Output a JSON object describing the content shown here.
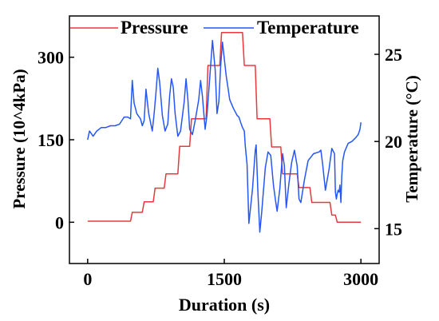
{
  "chart_data": {
    "type": "line",
    "xlabel": "Duration (s)",
    "ylabel_left": "Pressure (10^4kPa)",
    "ylabel_right": "Temperature (°C)",
    "xlim": [
      -200,
      3200
    ],
    "ylim_left": [
      -75,
      375
    ],
    "ylim_right": [
      13,
      27.2
    ],
    "x_ticks": [
      0,
      1500,
      3000
    ],
    "x_tick_labels": [
      "0",
      "1500",
      "3000"
    ],
    "y_left_ticks": [
      0,
      150,
      300
    ],
    "y_left_tick_labels": [
      "0",
      "150",
      "300"
    ],
    "y_right_ticks": [
      15,
      20,
      25
    ],
    "y_right_tick_labels": [
      "15",
      "20",
      "25"
    ],
    "grid": false,
    "legend_position": "top",
    "series": [
      {
        "name": "Pressure",
        "axis": "left",
        "color": "#e8383d",
        "x": [
          0,
          470,
          490,
          600,
          620,
          720,
          740,
          840,
          860,
          990,
          1010,
          1120,
          1140,
          1300,
          1320,
          1450,
          1470,
          1700,
          1720,
          1840,
          1860,
          2000,
          2020,
          2120,
          2140,
          2300,
          2320,
          2440,
          2460,
          2660,
          2680,
          2720,
          2740,
          3000
        ],
        "y": [
          2,
          2,
          18,
          18,
          37,
          37,
          62,
          62,
          88,
          88,
          138,
          138,
          188,
          188,
          285,
          285,
          345,
          345,
          285,
          285,
          188,
          188,
          137,
          137,
          88,
          88,
          63,
          63,
          36,
          36,
          13,
          13,
          0,
          0
        ]
      },
      {
        "name": "Temperature",
        "axis": "right",
        "color": "#2457f5",
        "x": [
          0,
          20,
          60,
          100,
          150,
          200,
          250,
          300,
          350,
          400,
          440,
          470,
          490,
          510,
          540,
          580,
          600,
          620,
          640,
          670,
          710,
          730,
          750,
          770,
          790,
          820,
          850,
          880,
          900,
          920,
          940,
          960,
          990,
          1020,
          1060,
          1080,
          1100,
          1120,
          1150,
          1180,
          1220,
          1240,
          1260,
          1290,
          1310,
          1340,
          1370,
          1400,
          1420,
          1440,
          1460,
          1480,
          1520,
          1560,
          1600,
          1640,
          1660,
          1680,
          1700,
          1720,
          1730,
          1750,
          1770,
          1810,
          1840,
          1850,
          1870,
          1890,
          1910,
          1950,
          1980,
          2010,
          2040,
          2060,
          2080,
          2110,
          2140,
          2160,
          2180,
          2210,
          2240,
          2270,
          2300,
          2320,
          2340,
          2380,
          2420,
          2480,
          2540,
          2560,
          2580,
          2610,
          2650,
          2680,
          2710,
          2720,
          2730,
          2740,
          2750,
          2760,
          2770,
          2780,
          2790,
          2800,
          2820,
          2860,
          2900,
          2940,
          2970,
          2990,
          3000
        ],
        "y": [
          20.1,
          20.6,
          20.3,
          20.6,
          20.8,
          20.8,
          20.9,
          20.9,
          21.0,
          21.4,
          21.4,
          21.3,
          23.5,
          22.2,
          21.6,
          21.3,
          20.9,
          21.2,
          23.0,
          21.6,
          20.6,
          21.6,
          22.8,
          24.2,
          23.4,
          21.5,
          20.6,
          21.0,
          22.6,
          23.6,
          23.1,
          21.6,
          20.3,
          20.6,
          22.3,
          23.6,
          22.4,
          20.7,
          20.4,
          21.2,
          22.4,
          23.5,
          22.6,
          20.7,
          21.5,
          23.6,
          25.8,
          24.1,
          21.6,
          22.3,
          24.3,
          25.7,
          23.8,
          22.4,
          21.9,
          21.5,
          21.4,
          21.1,
          20.8,
          20.6,
          19.8,
          18.7,
          15.3,
          17.3,
          19.5,
          19.8,
          17.0,
          14.8,
          15.9,
          18.5,
          19.4,
          19.2,
          17.5,
          16.7,
          16.0,
          17.3,
          19.3,
          18.6,
          16.2,
          17.6,
          18.8,
          19.5,
          18.6,
          16.7,
          16.5,
          17.8,
          18.9,
          19.3,
          19.4,
          19.5,
          18.7,
          17.2,
          18.4,
          19.6,
          19.3,
          17.1,
          16.7,
          17.0,
          17.2,
          17.1,
          17.5,
          16.5,
          18.0,
          18.9,
          19.4,
          19.9,
          20.0,
          20.2,
          20.4,
          20.7,
          21.1
        ]
      }
    ]
  }
}
